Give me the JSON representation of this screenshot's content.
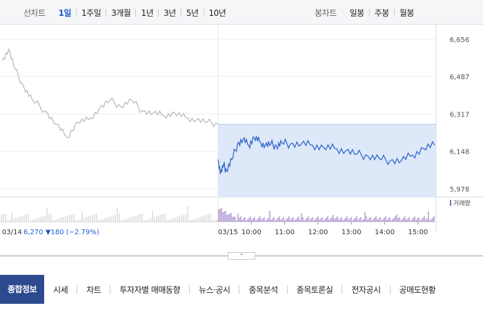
{
  "period_bar": {
    "line_label": "선차트",
    "line_periods": [
      "1일",
      "1주일",
      "3개월",
      "1년",
      "3년",
      "5년",
      "10년"
    ],
    "active_period": "1일",
    "candle_label": "봉차트",
    "candle_periods": [
      "일봉",
      "주봉",
      "월봉"
    ]
  },
  "colors": {
    "accent": "#1a5fd0",
    "price_line": "#3366cc",
    "prev_line": "#bbbbbb",
    "range_fill": "#dde8f8",
    "volume": "#8c6bbd",
    "down": "#1a5fd0",
    "tab_active_bg": "#2c4a8d"
  },
  "chart_data": {
    "type": "line",
    "y_ticks": [
      6656,
      6487,
      6317,
      6148,
      5978
    ],
    "ylim": [
      5940,
      6690
    ],
    "x_tick_labels": [
      "03/14",
      "03/15",
      "10:00",
      "11:00",
      "12:00",
      "13:00",
      "14:00",
      "15:00"
    ],
    "prev_day_close": 6270,
    "series": [
      {
        "date": "03/14",
        "x": [
          0,
          0.03,
          0.06,
          0.1,
          0.14,
          0.2,
          0.25,
          0.3,
          0.35,
          0.4,
          0.45,
          0.5,
          0.55,
          0.6,
          0.65,
          0.7,
          0.75,
          0.8,
          0.85,
          0.9,
          0.95,
          1
        ],
        "values": [
          6560,
          6610,
          6520,
          6440,
          6380,
          6330,
          6270,
          6210,
          6280,
          6290,
          6340,
          6380,
          6350,
          6380,
          6330,
          6320,
          6310,
          6320,
          6300,
          6290,
          6280,
          6270
        ]
      },
      {
        "date": "03/15",
        "x": [
          "09:00",
          "09:05",
          "09:10",
          "09:15",
          "09:25",
          "09:35",
          "09:45",
          "09:55",
          "10:05",
          "10:15",
          "10:25",
          "10:35",
          "10:45",
          "10:55",
          "11:10",
          "11:30",
          "11:50",
          "12:10",
          "12:30",
          "12:50",
          "13:10",
          "13:30",
          "13:50",
          "14:10",
          "14:30",
          "14:50",
          "15:10",
          "15:30"
        ],
        "values": [
          6110,
          6050,
          6085,
          6060,
          6110,
          6180,
          6200,
          6175,
          6210,
          6190,
          6175,
          6180,
          6170,
          6185,
          6180,
          6180,
          6175,
          6165,
          6160,
          6150,
          6135,
          6125,
          6115,
          6105,
          6105,
          6130,
          6160,
          6175
        ]
      }
    ],
    "volume_legend": "거래량",
    "summary": {
      "date": "03/14",
      "price": "6,270",
      "change": "▼180",
      "change_pct": "(−2.79%)"
    }
  },
  "collapse_button": "⌃",
  "tabs": [
    "종합정보",
    "시세",
    "차트",
    "투자자별 매매동향",
    "뉴스·공시",
    "종목분석",
    "종목토론실",
    "전자공시",
    "공매도현황"
  ],
  "active_tab": "종합정보"
}
